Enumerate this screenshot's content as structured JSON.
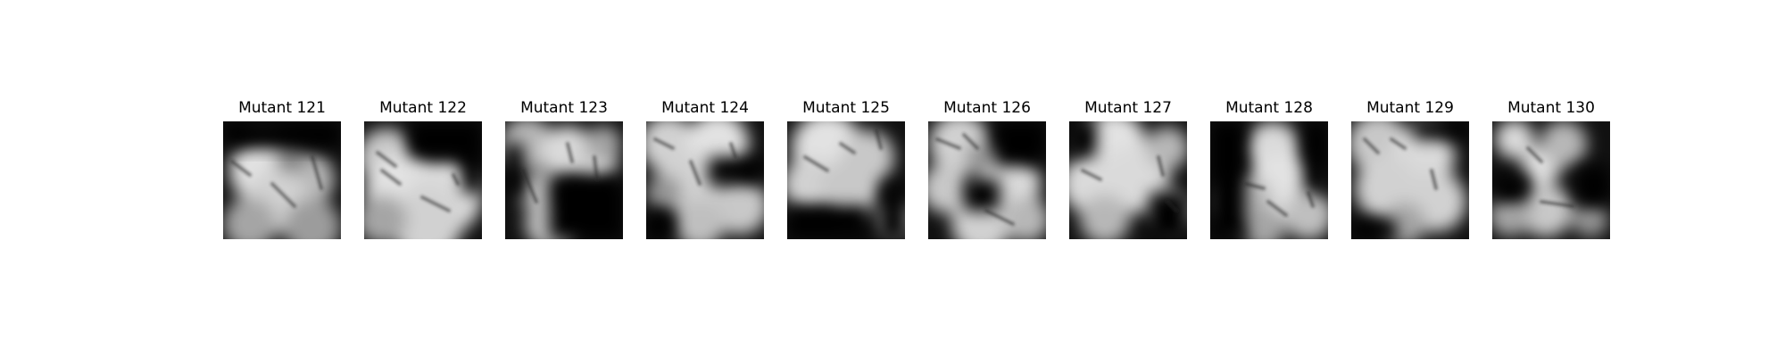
{
  "figure": {
    "panels": [
      {
        "title": "Mutant 121",
        "image": "mutant-121-grayscale-heatmap"
      },
      {
        "title": "Mutant 122",
        "image": "mutant-122-grayscale-heatmap"
      },
      {
        "title": "Mutant 123",
        "image": "mutant-123-grayscale-heatmap"
      },
      {
        "title": "Mutant 124",
        "image": "mutant-124-grayscale-heatmap"
      },
      {
        "title": "Mutant 125",
        "image": "mutant-125-grayscale-heatmap"
      },
      {
        "title": "Mutant 126",
        "image": "mutant-126-grayscale-heatmap"
      },
      {
        "title": "Mutant 127",
        "image": "mutant-127-grayscale-heatmap"
      },
      {
        "title": "Mutant 128",
        "image": "mutant-128-grayscale-heatmap"
      },
      {
        "title": "Mutant 129",
        "image": "mutant-129-grayscale-heatmap"
      },
      {
        "title": "Mutant 130",
        "image": "mutant-130-grayscale-heatmap"
      }
    ]
  }
}
